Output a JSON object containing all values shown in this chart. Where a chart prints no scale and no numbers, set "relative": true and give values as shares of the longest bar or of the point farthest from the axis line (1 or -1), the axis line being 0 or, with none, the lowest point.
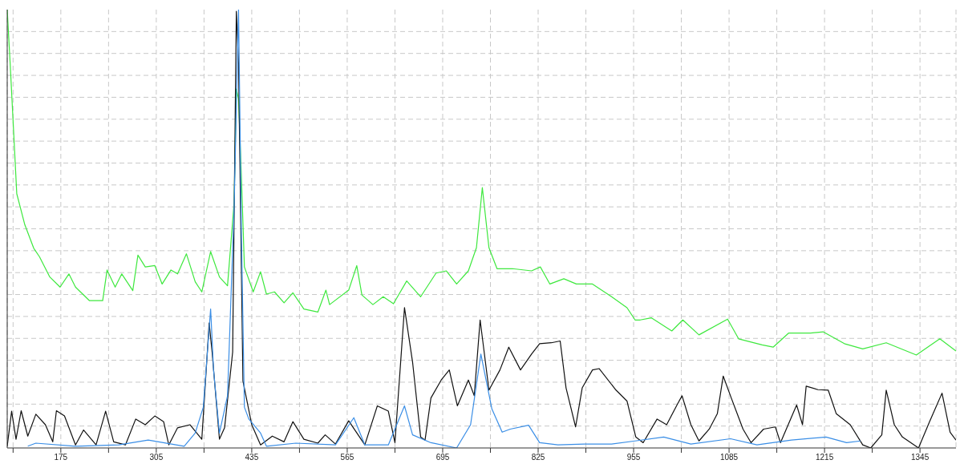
{
  "chart_data": {
    "type": "line",
    "relative": true,
    "grid": true,
    "marker": "none",
    "line_style": "solid",
    "xlim": [
      102,
      1394
    ],
    "xticks": [
      {
        "value": 110,
        "label": null
      },
      175,
      {
        "value": 240,
        "label": null
      },
      305,
      {
        "value": 370,
        "label": null
      },
      435,
      {
        "value": 500,
        "label": null
      },
      565,
      {
        "value": 630,
        "label": null
      },
      695,
      {
        "value": 760,
        "label": null
      },
      825,
      {
        "value": 890,
        "label": null
      },
      955,
      {
        "value": 1020,
        "label": null
      },
      1085,
      {
        "value": 1150,
        "label": null
      },
      1215,
      {
        "value": 1280,
        "label": null
      },
      1345
    ],
    "series": [
      {
        "color": "#3ee83e",
        "x": [
          102,
          106,
          110,
          115,
          126,
          138,
          146,
          160,
          174,
          186,
          195,
          214,
          232,
          238,
          249,
          258,
          273,
          280,
          290,
          303,
          313,
          325,
          334,
          346,
          358,
          367,
          379,
          391,
          402,
          411,
          414,
          417,
          421,
          425,
          437,
          447,
          455,
          466,
          479,
          491,
          506,
          525,
          536,
          541,
          567,
          578,
          585,
          600,
          614,
          628,
          646,
          665,
          686,
          700,
          714,
          730,
          741,
          749,
          758,
          769,
          790,
          816,
          828,
          841,
          860,
          877,
          899,
          925,
          946,
          957,
          964,
          979,
          1007,
          1022,
          1044,
          1083,
          1098,
          1130,
          1145,
          1166,
          1196,
          1213,
          1242,
          1267,
          1299,
          1340,
          1372,
          1394
        ],
        "values": [
          1.0,
          0.877,
          0.746,
          0.58,
          0.509,
          0.456,
          0.436,
          0.39,
          0.367,
          0.397,
          0.367,
          0.336,
          0.336,
          0.406,
          0.367,
          0.397,
          0.359,
          0.44,
          0.413,
          0.416,
          0.374,
          0.406,
          0.397,
          0.443,
          0.379,
          0.356,
          0.448,
          0.39,
          0.37,
          0.56,
          0.819,
          0.797,
          0.614,
          0.413,
          0.356,
          0.402,
          0.351,
          0.356,
          0.331,
          0.354,
          0.317,
          0.31,
          0.36,
          0.327,
          0.36,
          0.416,
          0.349,
          0.327,
          0.345,
          0.329,
          0.381,
          0.345,
          0.399,
          0.404,
          0.374,
          0.404,
          0.457,
          0.594,
          0.457,
          0.409,
          0.409,
          0.404,
          0.413,
          0.374,
          0.386,
          0.374,
          0.374,
          0.345,
          0.32,
          0.292,
          0.292,
          0.297,
          0.267,
          0.292,
          0.258,
          0.294,
          0.249,
          0.235,
          0.23,
          0.262,
          0.262,
          0.265,
          0.238,
          0.226,
          0.24,
          0.212,
          0.249,
          0.221
        ]
      },
      {
        "color": "#111111",
        "x": [
          102,
          108,
          114,
          121,
          130,
          141,
          154,
          164,
          169,
          180,
          195,
          206,
          223,
          236,
          247,
          263,
          277,
          290,
          303,
          315,
          322,
          334,
          351,
          367,
          377,
          381,
          391,
          398,
          409,
          414,
          417,
          423,
          435,
          447,
          463,
          479,
          491,
          506,
          525,
          535,
          549,
          567,
          589,
          606,
          621,
          630,
          643,
          654,
          665,
          671,
          679,
          693,
          704,
          715,
          730,
          738,
          746,
          758,
          773,
          785,
          801,
          816,
          827,
          843,
          855,
          863,
          876,
          885,
          899,
          908,
          931,
          946,
          958,
          968,
          987,
          1000,
          1015,
          1021,
          1033,
          1044,
          1058,
          1069,
          1077,
          1088,
          1104,
          1115,
          1132,
          1148,
          1155,
          1177,
          1185,
          1190,
          1206,
          1220,
          1231,
          1250,
          1267,
          1278,
          1293,
          1299,
          1310,
          1321,
          1343,
          1358,
          1375,
          1386,
          1394
        ],
        "values": [
          0.004,
          0.084,
          0.02,
          0.085,
          0.027,
          0.077,
          0.053,
          0.014,
          0.085,
          0.073,
          0.007,
          0.041,
          0.007,
          0.084,
          0.014,
          0.007,
          0.066,
          0.053,
          0.073,
          0.06,
          0.007,
          0.046,
          0.053,
          0.02,
          0.285,
          0.219,
          0.02,
          0.046,
          0.219,
          0.996,
          0.877,
          0.153,
          0.053,
          0.007,
          0.027,
          0.014,
          0.06,
          0.02,
          0.011,
          0.03,
          0.009,
          0.062,
          0.007,
          0.096,
          0.084,
          0.012,
          0.32,
          0.196,
          0.025,
          0.018,
          0.114,
          0.155,
          0.178,
          0.096,
          0.155,
          0.119,
          0.292,
          0.132,
          0.178,
          0.23,
          0.178,
          0.214,
          0.238,
          0.24,
          0.244,
          0.137,
          0.048,
          0.137,
          0.178,
          0.181,
          0.132,
          0.107,
          0.025,
          0.012,
          0.066,
          0.053,
          0.101,
          0.119,
          0.053,
          0.016,
          0.043,
          0.078,
          0.164,
          0.114,
          0.043,
          0.012,
          0.043,
          0.048,
          0.012,
          0.098,
          0.053,
          0.141,
          0.133,
          0.132,
          0.078,
          0.053,
          0.007,
          0.0,
          0.03,
          0.132,
          0.053,
          0.025,
          0.0,
          0.06,
          0.125,
          0.036,
          0.018
        ]
      },
      {
        "color": "#3a8ee6",
        "x": [
          130,
          141,
          195,
          254,
          294,
          343,
          358,
          369,
          379,
          383,
          391,
          402,
          411,
          417,
          421,
          425,
          431,
          447,
          455,
          495,
          549,
          574,
          589,
          621,
          643,
          654,
          679,
          714,
          733,
          747,
          762,
          776,
          787,
          812,
          827,
          852,
          888,
          925,
          957,
          996,
          1033,
          1087,
          1123,
          1170,
          1217,
          1245,
          1264
        ],
        "values": [
          0.004,
          0.011,
          0.004,
          0.007,
          0.018,
          0.004,
          0.034,
          0.093,
          0.317,
          0.178,
          0.034,
          0.119,
          0.548,
          1.0,
          0.482,
          0.093,
          0.066,
          0.034,
          0.004,
          0.011,
          0.007,
          0.069,
          0.007,
          0.007,
          0.096,
          0.03,
          0.012,
          0.0,
          0.053,
          0.214,
          0.089,
          0.036,
          0.043,
          0.052,
          0.012,
          0.007,
          0.009,
          0.009,
          0.016,
          0.025,
          0.009,
          0.021,
          0.007,
          0.018,
          0.025,
          0.012,
          0.016
        ]
      }
    ]
  }
}
